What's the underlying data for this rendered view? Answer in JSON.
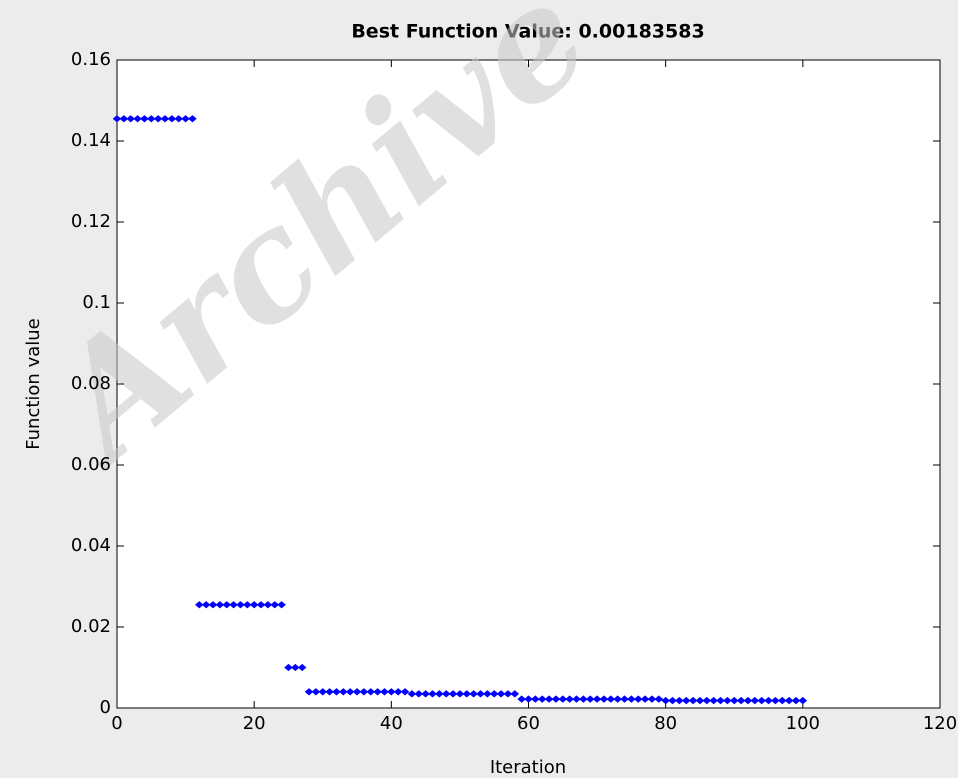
{
  "chart_data": {
    "type": "scatter",
    "title": "Best Function Value: 0.00183583",
    "xlabel": "Iteration",
    "ylabel": "Function value",
    "watermark": "Archive",
    "color": "#0000ff",
    "x": [
      0,
      1,
      2,
      3,
      4,
      5,
      6,
      7,
      8,
      9,
      10,
      11,
      12,
      13,
      14,
      15,
      16,
      17,
      18,
      19,
      20,
      21,
      22,
      23,
      24,
      25,
      26,
      27,
      28,
      29,
      30,
      31,
      32,
      33,
      34,
      35,
      36,
      37,
      38,
      39,
      40,
      41,
      42,
      43,
      44,
      45,
      46,
      47,
      48,
      49,
      50,
      51,
      52,
      53,
      54,
      55,
      56,
      57,
      58,
      59,
      60,
      61,
      62,
      63,
      64,
      65,
      66,
      67,
      68,
      69,
      70,
      71,
      72,
      73,
      74,
      75,
      76,
      77,
      78,
      79,
      80,
      81,
      82,
      83,
      84,
      85,
      86,
      87,
      88,
      89,
      90,
      91,
      92,
      93,
      94,
      95,
      96,
      97,
      98,
      99,
      100
    ],
    "values": [
      0.1455,
      0.1455,
      0.1455,
      0.1455,
      0.1455,
      0.1455,
      0.1455,
      0.1455,
      0.1455,
      0.1455,
      0.1455,
      0.1455,
      0.0255,
      0.0255,
      0.0255,
      0.0255,
      0.0255,
      0.0255,
      0.0255,
      0.0255,
      0.0255,
      0.0255,
      0.0255,
      0.0255,
      0.0255,
      0.01,
      0.01,
      0.01,
      0.004,
      0.004,
      0.004,
      0.004,
      0.004,
      0.004,
      0.004,
      0.004,
      0.004,
      0.004,
      0.004,
      0.004,
      0.004,
      0.004,
      0.004,
      0.0035,
      0.0035,
      0.0035,
      0.0035,
      0.0035,
      0.0035,
      0.0035,
      0.0035,
      0.0035,
      0.0035,
      0.0035,
      0.0035,
      0.0035,
      0.0035,
      0.0035,
      0.0035,
      0.0022,
      0.0022,
      0.0022,
      0.0022,
      0.0022,
      0.0022,
      0.0022,
      0.0022,
      0.0022,
      0.0022,
      0.0022,
      0.0022,
      0.0022,
      0.0022,
      0.0022,
      0.0022,
      0.0022,
      0.0022,
      0.0022,
      0.0022,
      0.0022,
      0.00183583,
      0.00183583,
      0.00183583,
      0.00183583,
      0.00183583,
      0.00183583,
      0.00183583,
      0.00183583,
      0.00183583,
      0.00183583,
      0.00183583,
      0.00183583,
      0.00183583,
      0.00183583,
      0.00183583,
      0.00183583,
      0.00183583,
      0.00183583,
      0.00183583,
      0.00183583,
      0.00183583
    ],
    "xlim": [
      0,
      120
    ],
    "xticks": [
      0,
      20,
      40,
      60,
      80,
      100,
      120
    ],
    "ylim": [
      0,
      0.16
    ],
    "yticks": [
      0,
      0.02,
      0.04,
      0.06,
      0.08,
      0.1,
      0.12,
      0.14,
      0.16
    ]
  }
}
